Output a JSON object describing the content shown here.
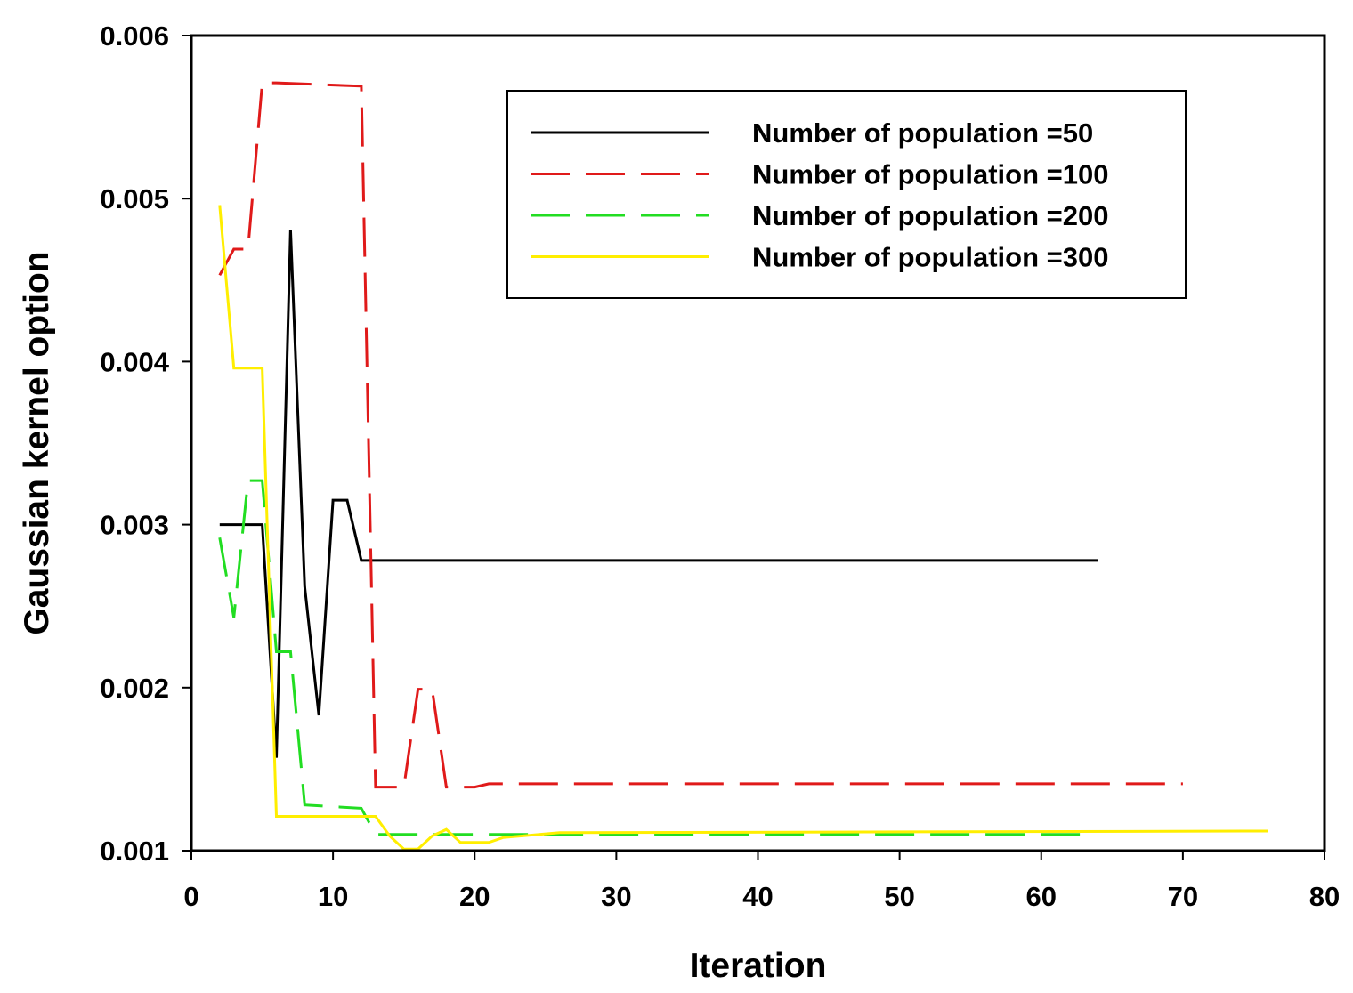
{
  "chart_data": {
    "type": "line",
    "title": "",
    "xlabel": "Iteration",
    "ylabel": "Gaussian kernel option",
    "xlim": [
      0,
      80
    ],
    "ylim": [
      0.001,
      0.006
    ],
    "xticks": [
      0,
      10,
      20,
      30,
      40,
      50,
      60,
      70,
      80
    ],
    "xtick_labels": [
      "0",
      "10",
      "20",
      "30",
      "40",
      "50",
      "60",
      "70",
      "80"
    ],
    "yticks": [
      0.001,
      0.002,
      0.003,
      0.004,
      0.005,
      0.006
    ],
    "ytick_labels": [
      "0.001",
      "0.002",
      "0.003",
      "0.004",
      "0.005",
      "0.006"
    ],
    "grid": false,
    "legend_position": "top-right",
    "series": [
      {
        "name": "Number of population =50",
        "color": "#000000",
        "style": "solid",
        "x": [
          2,
          3,
          4,
          5,
          6,
          7,
          8,
          9,
          10,
          11,
          12,
          64
        ],
        "y": [
          0.003,
          0.003,
          0.003,
          0.003,
          0.00157,
          0.00481,
          0.00262,
          0.00183,
          0.00315,
          0.00315,
          0.00278,
          0.00278
        ]
      },
      {
        "name": "Number of population =100",
        "color": "#e01a1a",
        "style": "dashed",
        "x": [
          2,
          3,
          4,
          5,
          6,
          12,
          13,
          14,
          15,
          16,
          17,
          18,
          19,
          20,
          21,
          70
        ],
        "y": [
          0.00453,
          0.00469,
          0.00469,
          0.00571,
          0.00571,
          0.00569,
          0.00139,
          0.00139,
          0.00139,
          0.00199,
          0.00199,
          0.00139,
          0.00139,
          0.00139,
          0.00141,
          0.00141
        ]
      },
      {
        "name": "Number of population =200",
        "color": "#22dd22",
        "style": "dashed",
        "x": [
          2,
          3,
          4,
          5,
          6,
          7,
          8,
          12,
          13,
          63
        ],
        "y": [
          0.00292,
          0.00243,
          0.00327,
          0.00327,
          0.00222,
          0.00222,
          0.00128,
          0.00126,
          0.0011,
          0.0011
        ]
      },
      {
        "name": "Number of population =300",
        "color": "#ffee00",
        "style": "solid",
        "x": [
          2,
          3,
          4,
          5,
          6,
          12,
          13,
          14,
          15,
          16,
          17,
          18,
          19,
          20,
          21,
          22,
          26,
          76
        ],
        "y": [
          0.00496,
          0.00396,
          0.00396,
          0.00396,
          0.00121,
          0.00121,
          0.00121,
          0.00109,
          0.00101,
          0.00101,
          0.00109,
          0.00113,
          0.00105,
          0.00105,
          0.00105,
          0.00108,
          0.00111,
          0.00112
        ]
      }
    ]
  }
}
